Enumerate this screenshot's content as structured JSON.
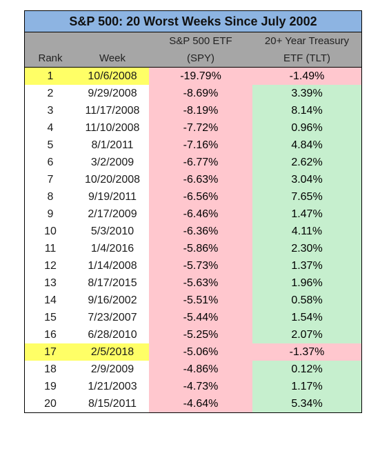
{
  "chart_data": {
    "type": "table",
    "title": "S&P 500: 20 Worst Weeks Since July 2002",
    "columns": {
      "rank": "Rank",
      "week": "Week",
      "spy_line1": "S&P 500 ETF",
      "spy_line2": "(SPY)",
      "tlt_line1": "20+ Year Treasury",
      "tlt_line2": "ETF (TLT)"
    },
    "rows": [
      {
        "rank": "1",
        "week": "10/6/2008",
        "spy": "-19.79%",
        "tlt": "-1.49%",
        "highlight": true
      },
      {
        "rank": "2",
        "week": "9/29/2008",
        "spy": "-8.69%",
        "tlt": "3.39%"
      },
      {
        "rank": "3",
        "week": "11/17/2008",
        "spy": "-8.19%",
        "tlt": "8.14%"
      },
      {
        "rank": "4",
        "week": "11/10/2008",
        "spy": "-7.72%",
        "tlt": "0.96%"
      },
      {
        "rank": "5",
        "week": "8/1/2011",
        "spy": "-7.16%",
        "tlt": "4.84%"
      },
      {
        "rank": "6",
        "week": "3/2/2009",
        "spy": "-6.77%",
        "tlt": "2.62%"
      },
      {
        "rank": "7",
        "week": "10/20/2008",
        "spy": "-6.63%",
        "tlt": "3.04%"
      },
      {
        "rank": "8",
        "week": "9/19/2011",
        "spy": "-6.56%",
        "tlt": "7.65%"
      },
      {
        "rank": "9",
        "week": "2/17/2009",
        "spy": "-6.46%",
        "tlt": "1.47%"
      },
      {
        "rank": "10",
        "week": "5/3/2010",
        "spy": "-6.36%",
        "tlt": "4.11%"
      },
      {
        "rank": "11",
        "week": "1/4/2016",
        "spy": "-5.86%",
        "tlt": "2.30%"
      },
      {
        "rank": "12",
        "week": "1/14/2008",
        "spy": "-5.73%",
        "tlt": "1.37%"
      },
      {
        "rank": "13",
        "week": "8/17/2015",
        "spy": "-5.63%",
        "tlt": "1.96%"
      },
      {
        "rank": "14",
        "week": "9/16/2002",
        "spy": "-5.51%",
        "tlt": "0.58%"
      },
      {
        "rank": "15",
        "week": "7/23/2007",
        "spy": "-5.44%",
        "tlt": "1.54%"
      },
      {
        "rank": "16",
        "week": "6/28/2010",
        "spy": "-5.25%",
        "tlt": "2.07%"
      },
      {
        "rank": "17",
        "week": "2/5/2018",
        "spy": "-5.06%",
        "tlt": "-1.37%",
        "highlight": true
      },
      {
        "rank": "18",
        "week": "2/9/2009",
        "spy": "-4.86%",
        "tlt": "0.12%"
      },
      {
        "rank": "19",
        "week": "1/21/2003",
        "spy": "-4.73%",
        "tlt": "1.17%"
      },
      {
        "rank": "20",
        "week": "8/15/2011",
        "spy": "-4.64%",
        "tlt": "5.34%"
      }
    ]
  },
  "colors": {
    "title_bg": "#8db4e2",
    "header_bg": "#a6a6a6",
    "negative_bg": "#ffc7ce",
    "negative_text": "#9c0006",
    "positive_bg": "#c6efce",
    "positive_text": "#006100",
    "highlight_bg": "#ffff66"
  }
}
